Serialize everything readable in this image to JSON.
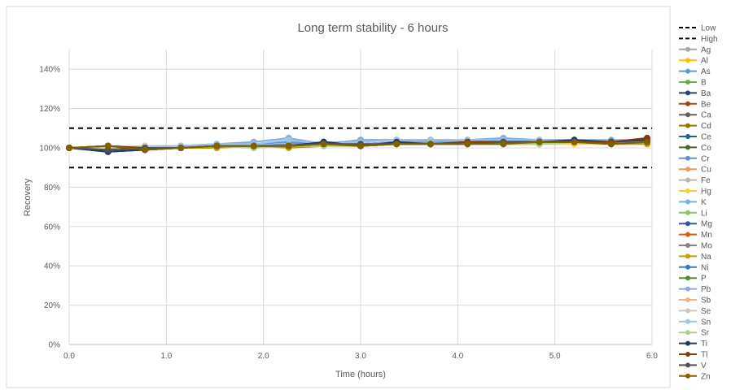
{
  "chart_data": {
    "type": "line",
    "title": "Long term stability - 6 hours",
    "xlabel": "Time (hours)",
    "ylabel": "Recovery",
    "xlim": [
      0,
      6
    ],
    "ylim": [
      0,
      150
    ],
    "x_ticks": [
      "0.0",
      "1.0",
      "2.0",
      "3.0",
      "4.0",
      "5.0",
      "6.0"
    ],
    "y_ticks": [
      "0%",
      "20%",
      "40%",
      "60%",
      "80%",
      "100%",
      "120%",
      "140%"
    ],
    "grid": true,
    "legend_position": "right",
    "x": [
      0.0,
      0.4,
      0.78,
      1.15,
      1.52,
      1.9,
      2.26,
      2.62,
      3.0,
      3.37,
      3.72,
      4.1,
      4.47,
      4.84,
      5.2,
      5.58,
      5.95
    ],
    "limit_lines": [
      {
        "name": "Low",
        "value": 90,
        "color": "#000000",
        "dash": "6,5"
      },
      {
        "name": "High",
        "value": 110,
        "color": "#000000",
        "dash": "6,5"
      }
    ],
    "series": [
      {
        "name": "Ag",
        "color": "#a5a5a5",
        "values": [
          100,
          99,
          100,
          100,
          101,
          101,
          102,
          102,
          101,
          102,
          102,
          103,
          103,
          103,
          103,
          103,
          103
        ]
      },
      {
        "name": "Al",
        "color": "#ffc000",
        "values": [
          100,
          100,
          100,
          100,
          101,
          101,
          101,
          102,
          101,
          102,
          102,
          102,
          103,
          103,
          103,
          102,
          103
        ]
      },
      {
        "name": "As",
        "color": "#5b9bd5",
        "values": [
          100,
          99,
          100,
          101,
          102,
          102,
          103,
          102,
          104,
          104,
          104,
          104,
          104,
          104,
          104,
          103,
          104
        ]
      },
      {
        "name": "B",
        "color": "#70ad47",
        "values": [
          100,
          99,
          100,
          100,
          101,
          101,
          101,
          102,
          101,
          102,
          102,
          102,
          102,
          103,
          103,
          102,
          103
        ]
      },
      {
        "name": "Ba",
        "color": "#264478",
        "values": [
          100,
          98,
          99,
          100,
          101,
          101,
          101,
          103,
          101,
          103,
          102,
          103,
          103,
          103,
          104,
          103,
          104
        ]
      },
      {
        "name": "Be",
        "color": "#9e480e",
        "values": [
          100,
          101,
          100,
          100,
          101,
          101,
          101,
          102,
          101,
          102,
          102,
          103,
          103,
          103,
          103,
          103,
          105
        ]
      },
      {
        "name": "Ca",
        "color": "#636363",
        "values": [
          100,
          99,
          100,
          100,
          101,
          101,
          101,
          102,
          102,
          102,
          102,
          102,
          103,
          103,
          103,
          102,
          103
        ]
      },
      {
        "name": "Cd",
        "color": "#997300",
        "values": [
          100,
          101,
          99,
          100,
          101,
          101,
          101,
          102,
          101,
          102,
          102,
          102,
          102,
          103,
          103,
          102,
          103
        ]
      },
      {
        "name": "Ce",
        "color": "#255e91",
        "values": [
          100,
          99,
          100,
          100,
          101,
          101,
          101,
          102,
          101,
          103,
          103,
          103,
          103,
          103,
          103,
          103,
          104
        ]
      },
      {
        "name": "Co",
        "color": "#43682b",
        "values": [
          100,
          99,
          100,
          100,
          101,
          101,
          101,
          102,
          101,
          102,
          102,
          103,
          103,
          103,
          103,
          102,
          103
        ]
      },
      {
        "name": "Cr",
        "color": "#698ed0",
        "values": [
          100,
          99,
          100,
          100,
          101,
          101,
          102,
          102,
          102,
          103,
          103,
          103,
          103,
          103,
          103,
          103,
          103
        ]
      },
      {
        "name": "Cu",
        "color": "#f1975a",
        "values": [
          100,
          99,
          100,
          100,
          101,
          101,
          101,
          102,
          101,
          102,
          102,
          102,
          103,
          103,
          103,
          102,
          103
        ]
      },
      {
        "name": "Fe",
        "color": "#b7b7b7",
        "values": [
          100,
          100,
          101,
          101,
          101,
          101,
          101,
          102,
          102,
          102,
          102,
          102,
          102,
          103,
          103,
          102,
          103
        ]
      },
      {
        "name": "Hg",
        "color": "#ffcd33",
        "values": [
          100,
          100,
          100,
          100,
          100,
          101,
          101,
          101,
          101,
          102,
          102,
          102,
          102,
          102,
          102,
          102,
          102
        ]
      },
      {
        "name": "K",
        "color": "#7cafdd",
        "values": [
          100,
          99,
          100,
          101,
          102,
          103,
          105,
          102,
          104,
          104,
          104,
          104,
          105,
          104,
          104,
          104,
          104
        ]
      },
      {
        "name": "Li",
        "color": "#8cc168",
        "values": [
          100,
          99,
          100,
          100,
          101,
          100,
          101,
          102,
          101,
          102,
          102,
          102,
          102,
          102,
          103,
          102,
          103
        ]
      },
      {
        "name": "Mg",
        "color": "#335aa1",
        "values": [
          100,
          99,
          99,
          100,
          101,
          101,
          101,
          103,
          102,
          103,
          103,
          103,
          104,
          103,
          103,
          103,
          104
        ]
      },
      {
        "name": "Mn",
        "color": "#d26012",
        "values": [
          100,
          99,
          100,
          100,
          101,
          101,
          101,
          102,
          101,
          102,
          102,
          103,
          103,
          103,
          103,
          103,
          104
        ]
      },
      {
        "name": "Mo",
        "color": "#848484",
        "values": [
          100,
          99,
          100,
          100,
          101,
          101,
          101,
          102,
          102,
          102,
          102,
          103,
          103,
          103,
          103,
          102,
          103
        ]
      },
      {
        "name": "Na",
        "color": "#cc9a00",
        "values": [
          100,
          100,
          100,
          100,
          100,
          101,
          100,
          101,
          101,
          102,
          102,
          102,
          102,
          102,
          103,
          102,
          102
        ]
      },
      {
        "name": "Ni",
        "color": "#327dc2",
        "values": [
          100,
          99,
          100,
          100,
          101,
          101,
          101,
          102,
          101,
          103,
          103,
          103,
          103,
          103,
          104,
          103,
          104
        ]
      },
      {
        "name": "P",
        "color": "#5a8a39",
        "values": [
          100,
          99,
          100,
          100,
          101,
          101,
          101,
          102,
          101,
          102,
          102,
          102,
          103,
          103,
          103,
          102,
          103
        ]
      },
      {
        "name": "Pb",
        "color": "#8faadc",
        "values": [
          100,
          99,
          100,
          100,
          101,
          101,
          101,
          102,
          102,
          103,
          103,
          103,
          103,
          103,
          103,
          103,
          103
        ]
      },
      {
        "name": "Sb",
        "color": "#f4b183",
        "values": [
          100,
          99,
          100,
          100,
          101,
          101,
          101,
          102,
          101,
          102,
          102,
          102,
          103,
          103,
          103,
          102,
          103
        ]
      },
      {
        "name": "Se",
        "color": "#c9c9c9",
        "values": [
          100,
          100,
          101,
          100,
          101,
          101,
          101,
          102,
          102,
          102,
          102,
          102,
          102,
          103,
          103,
          102,
          103
        ]
      },
      {
        "name": "Sn",
        "color": "#9dc3e6",
        "values": [
          100,
          99,
          100,
          101,
          102,
          102,
          104,
          102,
          103,
          104,
          104,
          104,
          104,
          104,
          104,
          103,
          104
        ]
      },
      {
        "name": "Sr",
        "color": "#a9d18e",
        "values": [
          100,
          99,
          100,
          100,
          101,
          100,
          101,
          101,
          101,
          102,
          102,
          102,
          102,
          102,
          103,
          102,
          103
        ]
      },
      {
        "name": "Ti",
        "color": "#1f3864",
        "values": [
          100,
          98,
          99,
          100,
          101,
          101,
          101,
          103,
          101,
          103,
          102,
          103,
          103,
          103,
          104,
          103,
          104
        ]
      },
      {
        "name": "Tl",
        "color": "#843c0c",
        "values": [
          100,
          101,
          100,
          100,
          101,
          101,
          101,
          102,
          101,
          102,
          102,
          103,
          103,
          103,
          103,
          103,
          105
        ]
      },
      {
        "name": "V",
        "color": "#525252",
        "values": [
          100,
          99,
          100,
          100,
          101,
          101,
          101,
          102,
          102,
          102,
          102,
          102,
          103,
          103,
          103,
          102,
          103
        ]
      },
      {
        "name": "Zn",
        "color": "#7f6000",
        "values": [
          100,
          101,
          99,
          100,
          101,
          101,
          101,
          102,
          101,
          102,
          102,
          102,
          102,
          103,
          103,
          102,
          103
        ]
      }
    ]
  }
}
